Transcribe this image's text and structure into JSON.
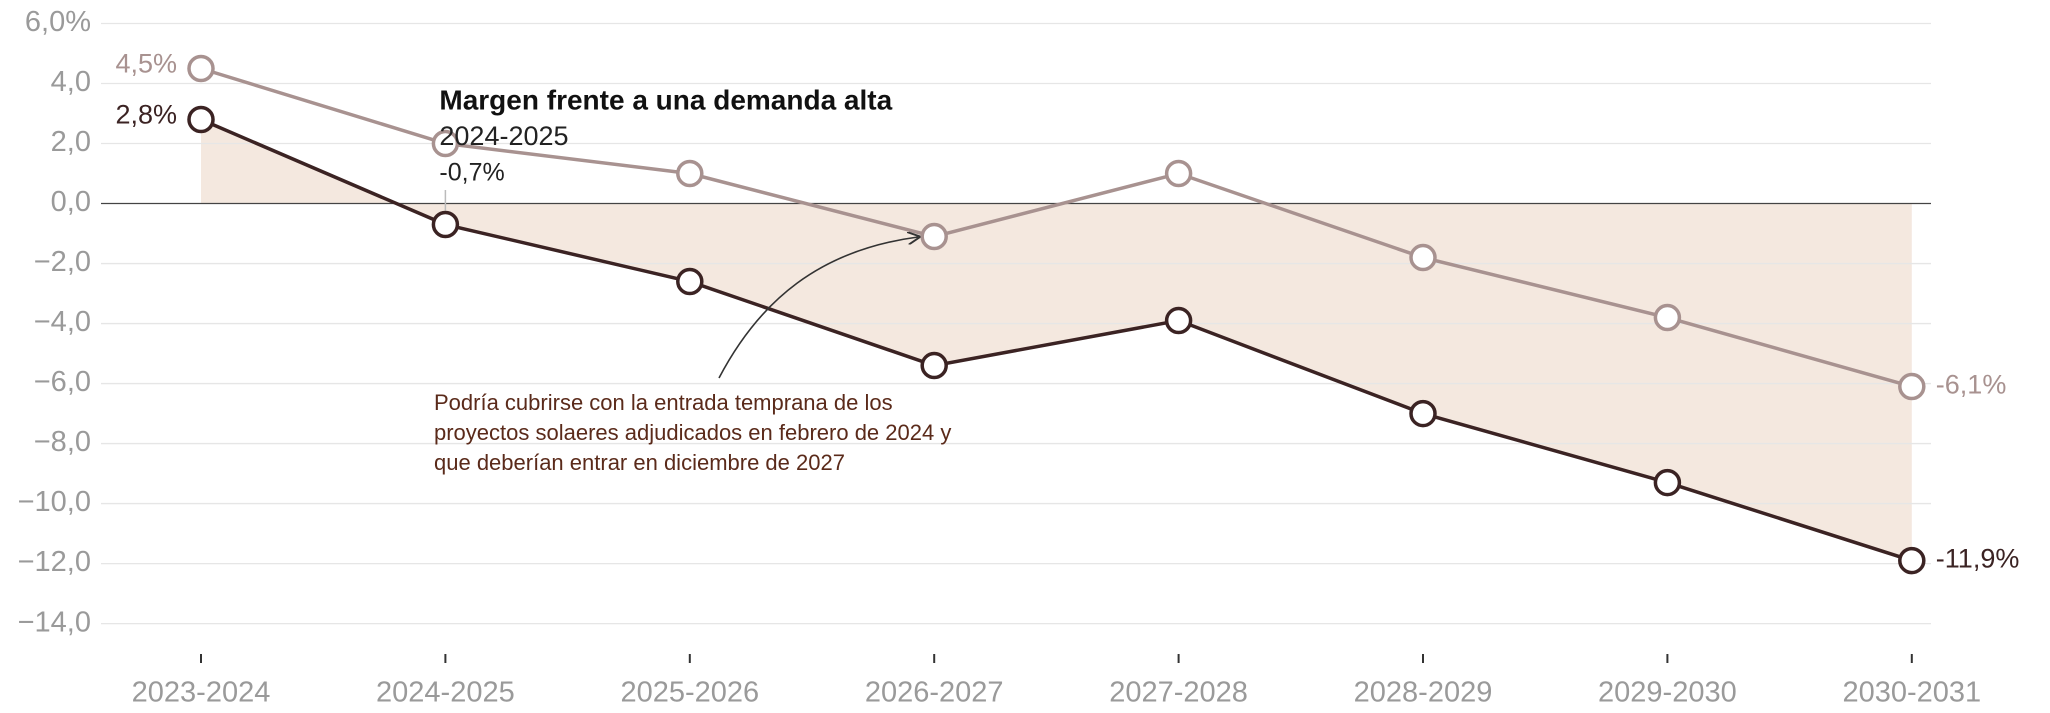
{
  "chart_data": {
    "type": "line",
    "categories": [
      "2023-2024",
      "2024-2025",
      "2025-2026",
      "2026-2027",
      "2027-2028",
      "2028-2029",
      "2029-2030",
      "2030-2031"
    ],
    "series": [
      {
        "name": "Margen frente a una demanda alta",
        "color": "#3b2323",
        "area_color": "#f4e8df",
        "values": [
          2.8,
          -0.7,
          -2.6,
          -5.4,
          -3.9,
          -7.0,
          -9.3,
          -11.9
        ],
        "value_labels": [
          "2,8%",
          null,
          null,
          null,
          null,
          null,
          null,
          "-11,9%"
        ]
      },
      {
        "color": "#a89290",
        "values": [
          4.5,
          2.0,
          1.0,
          -1.1,
          1.0,
          -1.8,
          -3.8,
          -6.1
        ],
        "value_labels": [
          "4,5%",
          null,
          null,
          null,
          null,
          null,
          null,
          "-6,1%"
        ]
      }
    ],
    "ylim": [
      -15,
      6
    ],
    "yticks": [
      {
        "value": 6,
        "label": "6,0%"
      },
      {
        "value": 4,
        "label": "4,0"
      },
      {
        "value": 2,
        "label": "2,0"
      },
      {
        "value": 0,
        "label": "0,0"
      },
      {
        "value": -2,
        "label": "−2,0"
      },
      {
        "value": -4,
        "label": "−4,0"
      },
      {
        "value": -6,
        "label": "−6,0"
      },
      {
        "value": -8,
        "label": "−8,0"
      },
      {
        "value": -10,
        "label": "−10,0"
      },
      {
        "value": -12,
        "label": "−12,0"
      },
      {
        "value": -14,
        "label": "−14,0"
      }
    ],
    "grid": true,
    "tooltip": {
      "label": "-0,7%"
    },
    "annotation": [
      "Podría cubrirse con la entrada temprana de los",
      "proyectos solaeres adjudicados en febrero de 2024 y",
      "que deberían entrar en diciembre de 2027"
    ]
  }
}
